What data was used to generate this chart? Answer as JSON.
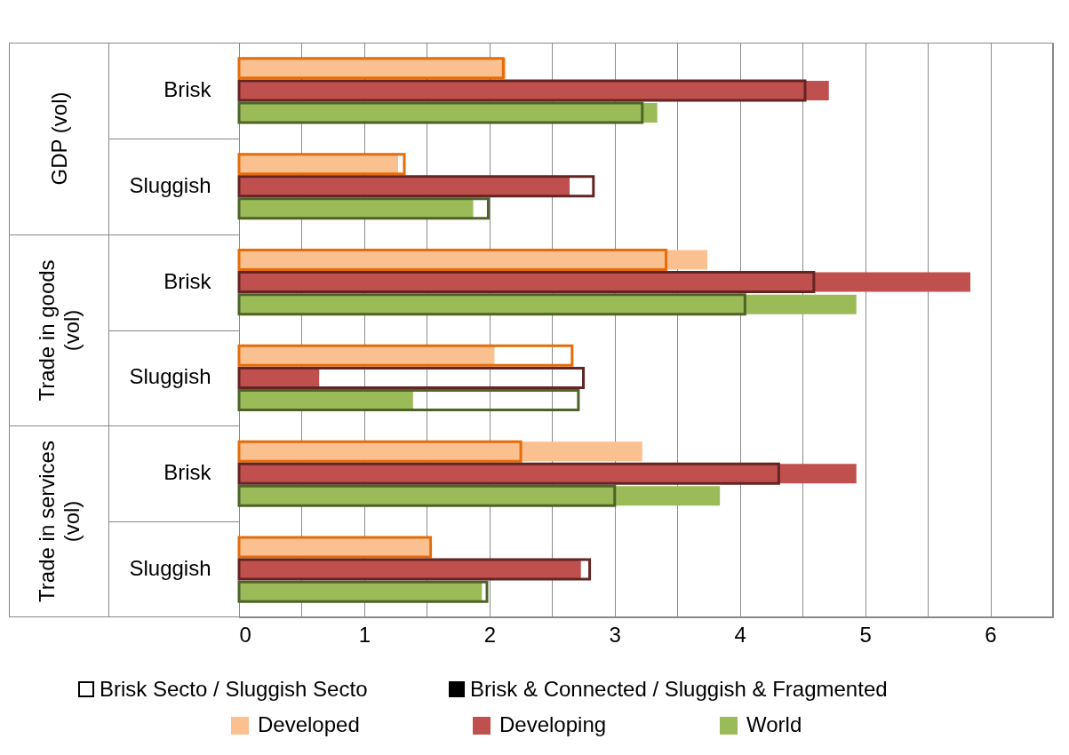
{
  "chart_data": {
    "type": "bar",
    "orientation": "horizontal",
    "categories": [
      "Brisk",
      "Sluggish",
      "Brisk",
      "Sluggish",
      "Brisk",
      "Sluggish"
    ],
    "series": [
      {
        "name": "Developed",
        "color": "#fac090",
        "values": [
          2.13,
          1.27,
          3.74,
          2.04,
          3.22,
          1.52
        ]
      },
      {
        "name": "Developing",
        "color": "#c0504d",
        "values": [
          4.71,
          2.64,
          5.84,
          0.64,
          4.93,
          2.73
        ]
      },
      {
        "name": "World",
        "color": "#9bbb59",
        "values": [
          3.34,
          1.87,
          4.93,
          1.39,
          3.84,
          1.94
        ]
      },
      {
        "color": "#e46c0a",
        "values": [
          2.11,
          1.32,
          3.41,
          2.66,
          2.25,
          1.53
        ]
      },
      {
        "color": "#632523",
        "values": [
          4.52,
          2.83,
          4.59,
          2.75,
          4.31,
          2.8
        ]
      },
      {
        "color": "#4f6228",
        "values": [
          3.22,
          1.99,
          4.04,
          2.71,
          3.0,
          1.98
        ]
      }
    ],
    "xlim": [
      0,
      6.5
    ],
    "xticks": [
      0,
      {
        "value": 0.5,
        "label": null
      },
      1,
      {
        "value": 1.5,
        "label": null
      },
      2,
      {
        "value": 2.5,
        "label": null
      },
      3,
      {
        "value": 3.5,
        "label": null
      },
      4,
      {
        "value": 4.5,
        "label": null
      },
      5,
      {
        "value": 5.5,
        "label": null
      },
      6
    ],
    "grid": "x",
    "legend": "bottom",
    "annotations": [
      "GDP (vol)",
      "Trade in goods (vol)",
      "Trade in services (vol)",
      "Brisk Secto / Sluggish Secto",
      "Brisk & Connected / Sluggish & Fragmented"
    ]
  }
}
